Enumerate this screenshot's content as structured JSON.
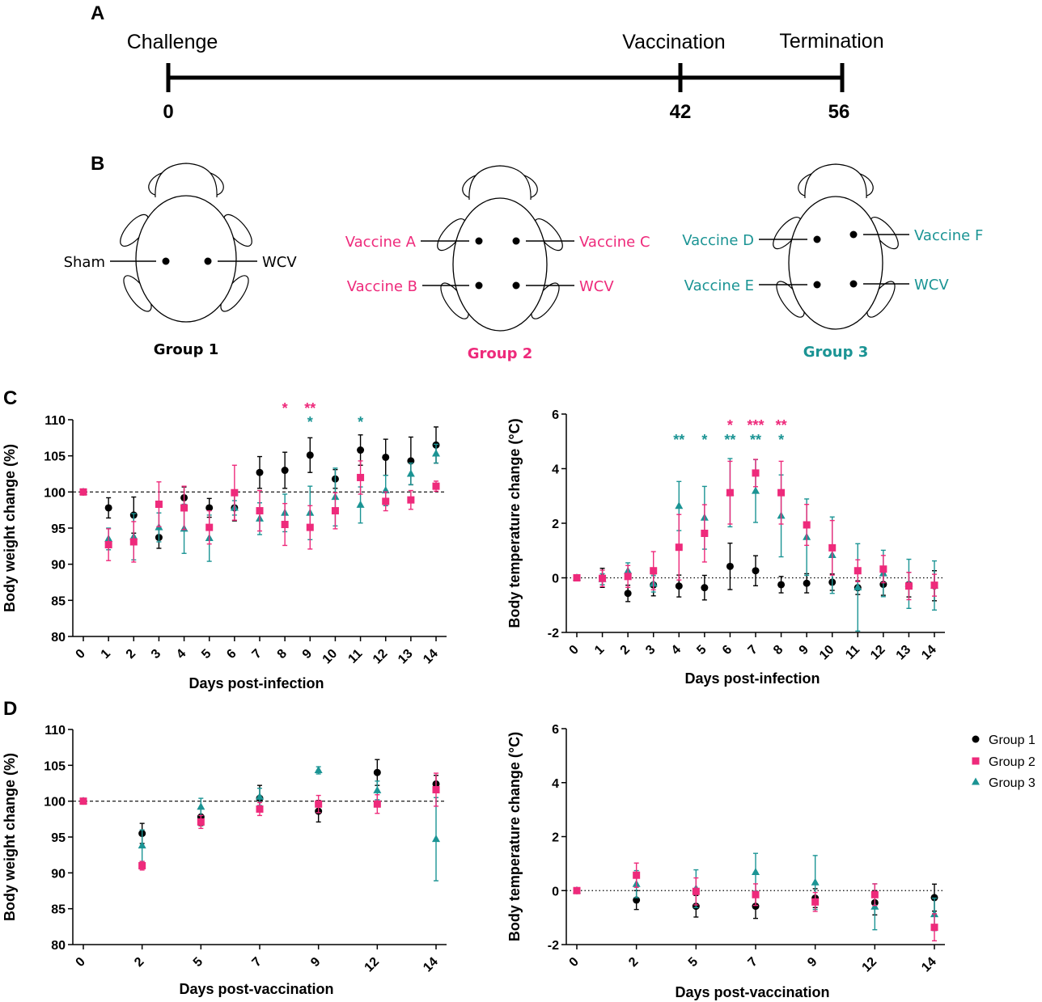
{
  "panels": {
    "A": "A",
    "B": "B",
    "C": "C",
    "D": "D"
  },
  "timeline": {
    "events": [
      {
        "label": "Challenge",
        "day": "0"
      },
      {
        "label": "Vaccination",
        "day": "42"
      },
      {
        "label": "Termination",
        "day": "56"
      }
    ]
  },
  "colors": {
    "group1": "#000000",
    "group2": "#ee2a7b",
    "group3": "#1b9494"
  },
  "groups": [
    {
      "title": "Group 1",
      "color": "#000000",
      "sites": {
        "left": [
          "Sham"
        ],
        "right": [
          "WCV"
        ]
      }
    },
    {
      "title": "Group 2",
      "color": "#ee2a7b",
      "sites": {
        "left": [
          "Vaccine A",
          "Vaccine B"
        ],
        "right": [
          "Vaccine C",
          "WCV"
        ]
      }
    },
    {
      "title": "Group 3",
      "color": "#1b9494",
      "sites": {
        "left": [
          "Vaccine D",
          "Vaccine E"
        ],
        "right": [
          "Vaccine F",
          "WCV"
        ]
      }
    }
  ],
  "legend": [
    "Group 1",
    "Group 2",
    "Group 3"
  ],
  "chart_data": [
    {
      "id": "C-weight",
      "type": "scatter",
      "xlabel": "Days post-infection",
      "ylabel": "Body weight change (%)",
      "ylim": [
        80,
        110
      ],
      "yticks": [
        80,
        85,
        90,
        95,
        100,
        105,
        110
      ],
      "reference_line": 100,
      "categories": [
        "0",
        "1",
        "2",
        "3",
        "4",
        "5",
        "6",
        "7",
        "8",
        "9",
        "10",
        "11",
        "12",
        "13",
        "14"
      ],
      "series": [
        {
          "name": "Group 1",
          "values": [
            100,
            97.8,
            96.8,
            93.7,
            99.2,
            97.8,
            97.8,
            102.7,
            103.0,
            105.1,
            101.8,
            105.8,
            104.8,
            104.3,
            106.5
          ],
          "errors": [
            0,
            1.4,
            2.5,
            1.5,
            1.5,
            1.3,
            1.8,
            2.2,
            2.5,
            2.4,
            1.3,
            2.1,
            2.5,
            3.3,
            2.5
          ]
        },
        {
          "name": "Group 2",
          "values": [
            100,
            92.7,
            93.1,
            98.3,
            97.8,
            95.1,
            99.9,
            97.4,
            95.5,
            95.1,
            97.4,
            102.0,
            98.7,
            98.9,
            100.8
          ],
          "errors": [
            0,
            2.2,
            2.8,
            3.1,
            3.0,
            2.3,
            3.8,
            2.8,
            2.9,
            3.0,
            2.5,
            2.3,
            1.3,
            1.3,
            0.7
          ]
        },
        {
          "name": "Group 3",
          "values": [
            100,
            93.5,
            93.8,
            95.1,
            94.9,
            93.6,
            97.8,
            96.3,
            97.1,
            97.1,
            99.3,
            98.2,
            100.2,
            102.5,
            105.3
          ],
          "errors": [
            0,
            1.5,
            3.2,
            2.0,
            3.4,
            3.2,
            1.0,
            2.2,
            2.6,
            3.7,
            4.0,
            2.5,
            2.1,
            1.5,
            1.3
          ]
        }
      ],
      "annotations": [
        {
          "x": "8",
          "text": "*",
          "group": "Group 2"
        },
        {
          "x": "9",
          "text": "**",
          "group": "Group 2"
        },
        {
          "x": "9",
          "text": "*",
          "group": "Group 3"
        },
        {
          "x": "11",
          "text": "*",
          "group": "Group 3"
        }
      ]
    },
    {
      "id": "C-temp",
      "type": "scatter",
      "xlabel": "Days post-infection",
      "ylabel": "Body temperature change (°C)",
      "ylim": [
        -2,
        6
      ],
      "yticks": [
        -2,
        0,
        2,
        4,
        6
      ],
      "reference_line": 0,
      "categories": [
        "0",
        "1",
        "2",
        "3",
        "4",
        "5",
        "6",
        "7",
        "8",
        "9",
        "10",
        "11",
        "12",
        "13",
        "14"
      ],
      "series": [
        {
          "name": "Group 1",
          "values": [
            0,
            0,
            -0.57,
            -0.26,
            -0.3,
            -0.36,
            0.42,
            0.26,
            -0.25,
            -0.2,
            -0.16,
            -0.36,
            -0.24,
            -0.25,
            -0.29
          ],
          "errors": [
            0,
            0.35,
            0.3,
            0.4,
            0.4,
            0.45,
            0.85,
            0.55,
            0.3,
            0.35,
            0.3,
            0.25,
            0.4,
            0.45,
            0.55
          ]
        },
        {
          "name": "Group 2",
          "values": [
            0,
            -0.02,
            0.05,
            0.26,
            1.12,
            1.63,
            3.12,
            3.84,
            3.12,
            1.94,
            1.1,
            0.26,
            0.32,
            -0.3,
            -0.27
          ],
          "errors": [
            0,
            0.3,
            0.4,
            0.7,
            1.2,
            1.05,
            1.15,
            0.5,
            1.15,
            0.75,
            1.0,
            0.4,
            0.5,
            0.5,
            0.4
          ]
        },
        {
          "name": "Group 3",
          "values": [
            0,
            -0.05,
            0.25,
            -0.22,
            2.63,
            2.2,
            3.12,
            3.18,
            2.27,
            1.49,
            0.83,
            -0.35,
            0.16,
            -0.22,
            -0.28
          ],
          "errors": [
            0,
            0.2,
            0.3,
            0.3,
            0.9,
            1.15,
            1.25,
            1.15,
            1.5,
            1.4,
            1.4,
            1.6,
            0.85,
            0.9,
            0.9
          ]
        }
      ],
      "annotations": [
        {
          "x": "4",
          "text": "**",
          "group": "Group 3"
        },
        {
          "x": "5",
          "text": "*",
          "group": "Group 3"
        },
        {
          "x": "6",
          "text": "*",
          "group": "Group 2"
        },
        {
          "x": "6",
          "text": "**",
          "group": "Group 3"
        },
        {
          "x": "7",
          "text": "***",
          "group": "Group 2"
        },
        {
          "x": "7",
          "text": "**",
          "group": "Group 3"
        },
        {
          "x": "8",
          "text": "**",
          "group": "Group 2"
        },
        {
          "x": "8",
          "text": "*",
          "group": "Group 3"
        }
      ]
    },
    {
      "id": "D-weight",
      "type": "scatter",
      "xlabel": "Days post-vaccination",
      "ylabel": "Body weight change (%)",
      "ylim": [
        80,
        110
      ],
      "yticks": [
        80,
        85,
        90,
        95,
        100,
        105,
        110
      ],
      "reference_line": 100,
      "categories": [
        "0",
        "2",
        "5",
        "7",
        "9",
        "12",
        "14"
      ],
      "series": [
        {
          "name": "Group 1",
          "values": [
            100,
            95.5,
            97.8,
            100.4,
            98.6,
            104.0,
            102.4
          ],
          "errors": [
            0,
            1.4,
            1.2,
            1.8,
            1.5,
            1.8,
            1.2
          ]
        },
        {
          "name": "Group 2",
          "values": [
            100,
            91.0,
            97.1,
            98.9,
            99.6,
            99.6,
            101.6
          ],
          "errors": [
            0,
            0.6,
            0.9,
            0.9,
            1.2,
            1.3,
            2.3
          ]
        },
        {
          "name": "Group 3",
          "values": [
            100,
            93.8,
            99.2,
            100.6,
            104.3,
            101.5,
            94.7
          ],
          "errors": [
            0,
            2.2,
            1.2,
            1.2,
            0.5,
            1.3,
            5.8
          ]
        }
      ],
      "annotations": []
    },
    {
      "id": "D-temp",
      "type": "scatter",
      "xlabel": "Days post-vaccination",
      "ylabel": "Body temperature change (°C)",
      "ylim": [
        -2,
        6
      ],
      "yticks": [
        -2,
        0,
        2,
        4,
        6
      ],
      "reference_line": 0,
      "categories": [
        "0",
        "2",
        "5",
        "7",
        "9",
        "12",
        "14"
      ],
      "series": [
        {
          "name": "Group 1",
          "values": [
            0,
            -0.35,
            -0.58,
            -0.58,
            -0.28,
            -0.45,
            -0.26
          ],
          "errors": [
            0,
            0.35,
            0.4,
            0.45,
            0.35,
            0.45,
            0.5
          ]
        },
        {
          "name": "Group 2",
          "values": [
            0,
            0.57,
            -0.03,
            -0.15,
            -0.42,
            -0.15,
            -1.36
          ],
          "errors": [
            0,
            0.45,
            0.5,
            0.4,
            0.35,
            0.4,
            0.5
          ]
        },
        {
          "name": "Group 3",
          "values": [
            0,
            0.24,
            0.07,
            0.68,
            0.3,
            -0.6,
            -0.88
          ],
          "errors": [
            0,
            0.5,
            0.7,
            0.7,
            1.0,
            0.85,
            0.6
          ]
        }
      ],
      "annotations": []
    }
  ]
}
